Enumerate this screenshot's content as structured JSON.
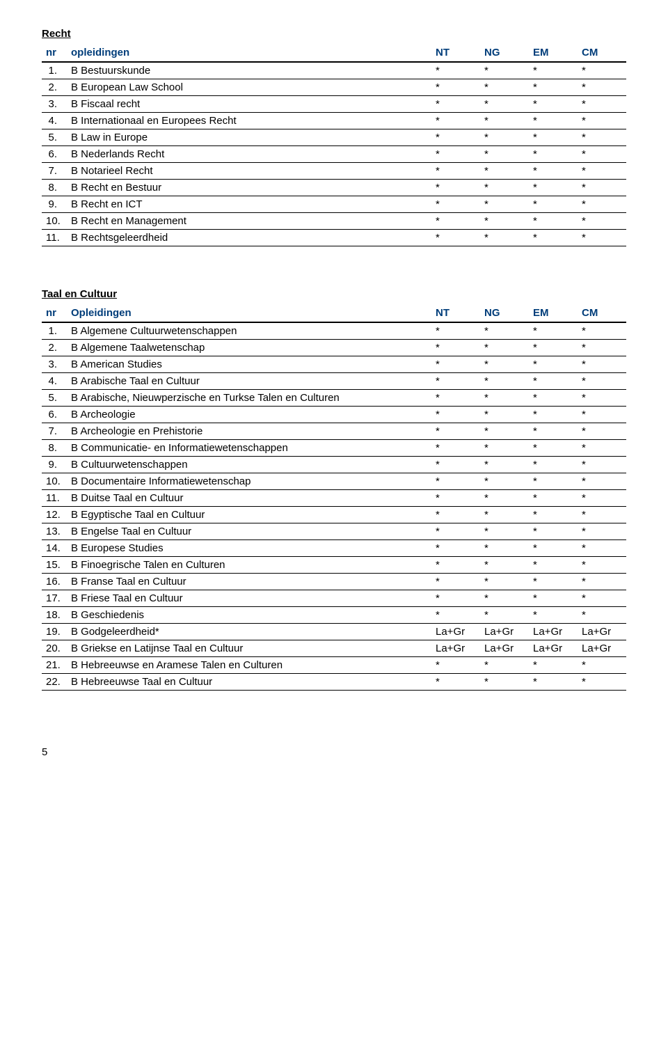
{
  "colors": {
    "header_text": "#003d7a",
    "body_text": "#000000",
    "rule": "#000000",
    "background": "#ffffff"
  },
  "fonts": {
    "body": "Arial, Helvetica, sans-serif",
    "body_size_pt": 11,
    "header_weight": "bold"
  },
  "page_number": "5",
  "sections": [
    {
      "title": "Recht",
      "header": {
        "nr": "nr",
        "name": "opleidingen",
        "cols": [
          "NT",
          "NG",
          "EM",
          "CM"
        ]
      },
      "rows": [
        {
          "nr": "1.",
          "name": "B Bestuurskunde",
          "vals": [
            "*",
            "*",
            "*",
            "*"
          ]
        },
        {
          "nr": "2.",
          "name": "B European Law School",
          "vals": [
            "*",
            "*",
            "*",
            "*"
          ]
        },
        {
          "nr": "3.",
          "name": "B Fiscaal recht",
          "vals": [
            "*",
            "*",
            "*",
            "*"
          ]
        },
        {
          "nr": "4.",
          "name": "B Internationaal en Europees Recht",
          "vals": [
            "*",
            "*",
            "*",
            "*"
          ]
        },
        {
          "nr": "5.",
          "name": "B Law in Europe",
          "vals": [
            "*",
            "*",
            "*",
            "*"
          ]
        },
        {
          "nr": "6.",
          "name": "B Nederlands Recht",
          "vals": [
            "*",
            "*",
            "*",
            "*"
          ]
        },
        {
          "nr": "7.",
          "name": "B Notarieel Recht",
          "vals": [
            "*",
            "*",
            "*",
            "*"
          ]
        },
        {
          "nr": "8.",
          "name": "B Recht en Bestuur",
          "vals": [
            "*",
            "*",
            "*",
            "*"
          ]
        },
        {
          "nr": "9.",
          "name": "B Recht en ICT",
          "vals": [
            "*",
            "*",
            "*",
            "*"
          ]
        },
        {
          "nr": "10.",
          "name": "B Recht en Management",
          "vals": [
            "*",
            "*",
            "*",
            "*"
          ]
        },
        {
          "nr": "11.",
          "name": "B Rechtsgeleerdheid",
          "vals": [
            "*",
            "*",
            "*",
            "*"
          ]
        }
      ]
    },
    {
      "title": "Taal en Cultuur",
      "header": {
        "nr": "nr",
        "name": "Opleidingen",
        "cols": [
          "NT",
          "NG",
          "EM",
          "CM"
        ]
      },
      "rows": [
        {
          "nr": "1.",
          "name": "B Algemene Cultuurwetenschappen",
          "vals": [
            "*",
            "*",
            "*",
            "*"
          ]
        },
        {
          "nr": "2.",
          "name": "B Algemene Taalwetenschap",
          "vals": [
            "*",
            "*",
            "*",
            "*"
          ]
        },
        {
          "nr": "3.",
          "name": "B American Studies",
          "vals": [
            "*",
            "*",
            "*",
            "*"
          ]
        },
        {
          "nr": "4.",
          "name": "B Arabische Taal en Cultuur",
          "vals": [
            "*",
            "*",
            "*",
            "*"
          ]
        },
        {
          "nr": "5.",
          "name": "B Arabische, Nieuwperzische en Turkse Talen en Culturen",
          "vals": [
            "*",
            "*",
            "*",
            "*"
          ]
        },
        {
          "nr": "6.",
          "name": "B Archeologie",
          "vals": [
            "*",
            "*",
            "*",
            "*"
          ]
        },
        {
          "nr": "7.",
          "name": "B Archeologie en Prehistorie",
          "vals": [
            "*",
            "*",
            "*",
            "*"
          ]
        },
        {
          "nr": "8.",
          "name": "B Communicatie- en Informatiewetenschappen",
          "vals": [
            "*",
            "*",
            "*",
            "*"
          ]
        },
        {
          "nr": "9.",
          "name": "B Cultuurwetenschappen",
          "vals": [
            "*",
            "*",
            "*",
            "*"
          ]
        },
        {
          "nr": "10.",
          "name": "B Documentaire Informatiewetenschap",
          "vals": [
            "*",
            "*",
            "*",
            "*"
          ]
        },
        {
          "nr": "11.",
          "name": "B Duitse Taal en Cultuur",
          "vals": [
            "*",
            "*",
            "*",
            "*"
          ]
        },
        {
          "nr": "12.",
          "name": "B Egyptische Taal en Cultuur",
          "vals": [
            "*",
            "*",
            "*",
            "*"
          ]
        },
        {
          "nr": "13.",
          "name": "B Engelse Taal en Cultuur",
          "vals": [
            "*",
            "*",
            "*",
            "*"
          ]
        },
        {
          "nr": "14.",
          "name": "B Europese Studies",
          "vals": [
            "*",
            "*",
            "*",
            "*"
          ]
        },
        {
          "nr": "15.",
          "name": "B Finoegrische Talen en Culturen",
          "vals": [
            "*",
            "*",
            "*",
            "*"
          ]
        },
        {
          "nr": "16.",
          "name": "B Franse Taal en Cultuur",
          "vals": [
            "*",
            "*",
            "*",
            "*"
          ]
        },
        {
          "nr": "17.",
          "name": "B Friese Taal en Cultuur",
          "vals": [
            "*",
            "*",
            "*",
            "*"
          ]
        },
        {
          "nr": "18.",
          "name": "B Geschiedenis",
          "vals": [
            "*",
            "*",
            "*",
            "*"
          ]
        },
        {
          "nr": "19.",
          "name": "B Godgeleerdheid*",
          "vals": [
            "La+Gr",
            "La+Gr",
            "La+Gr",
            "La+Gr"
          ]
        },
        {
          "nr": "20.",
          "name": "B Griekse en Latijnse Taal en Cultuur",
          "vals": [
            "La+Gr",
            "La+Gr",
            "La+Gr",
            "La+Gr"
          ]
        },
        {
          "nr": "21.",
          "name": "B Hebreeuwse en Aramese Talen en Culturen",
          "vals": [
            "*",
            "*",
            "*",
            "*"
          ]
        },
        {
          "nr": "22.",
          "name": "B Hebreeuwse Taal en Cultuur",
          "vals": [
            "*",
            "*",
            "*",
            "*"
          ]
        }
      ]
    }
  ]
}
